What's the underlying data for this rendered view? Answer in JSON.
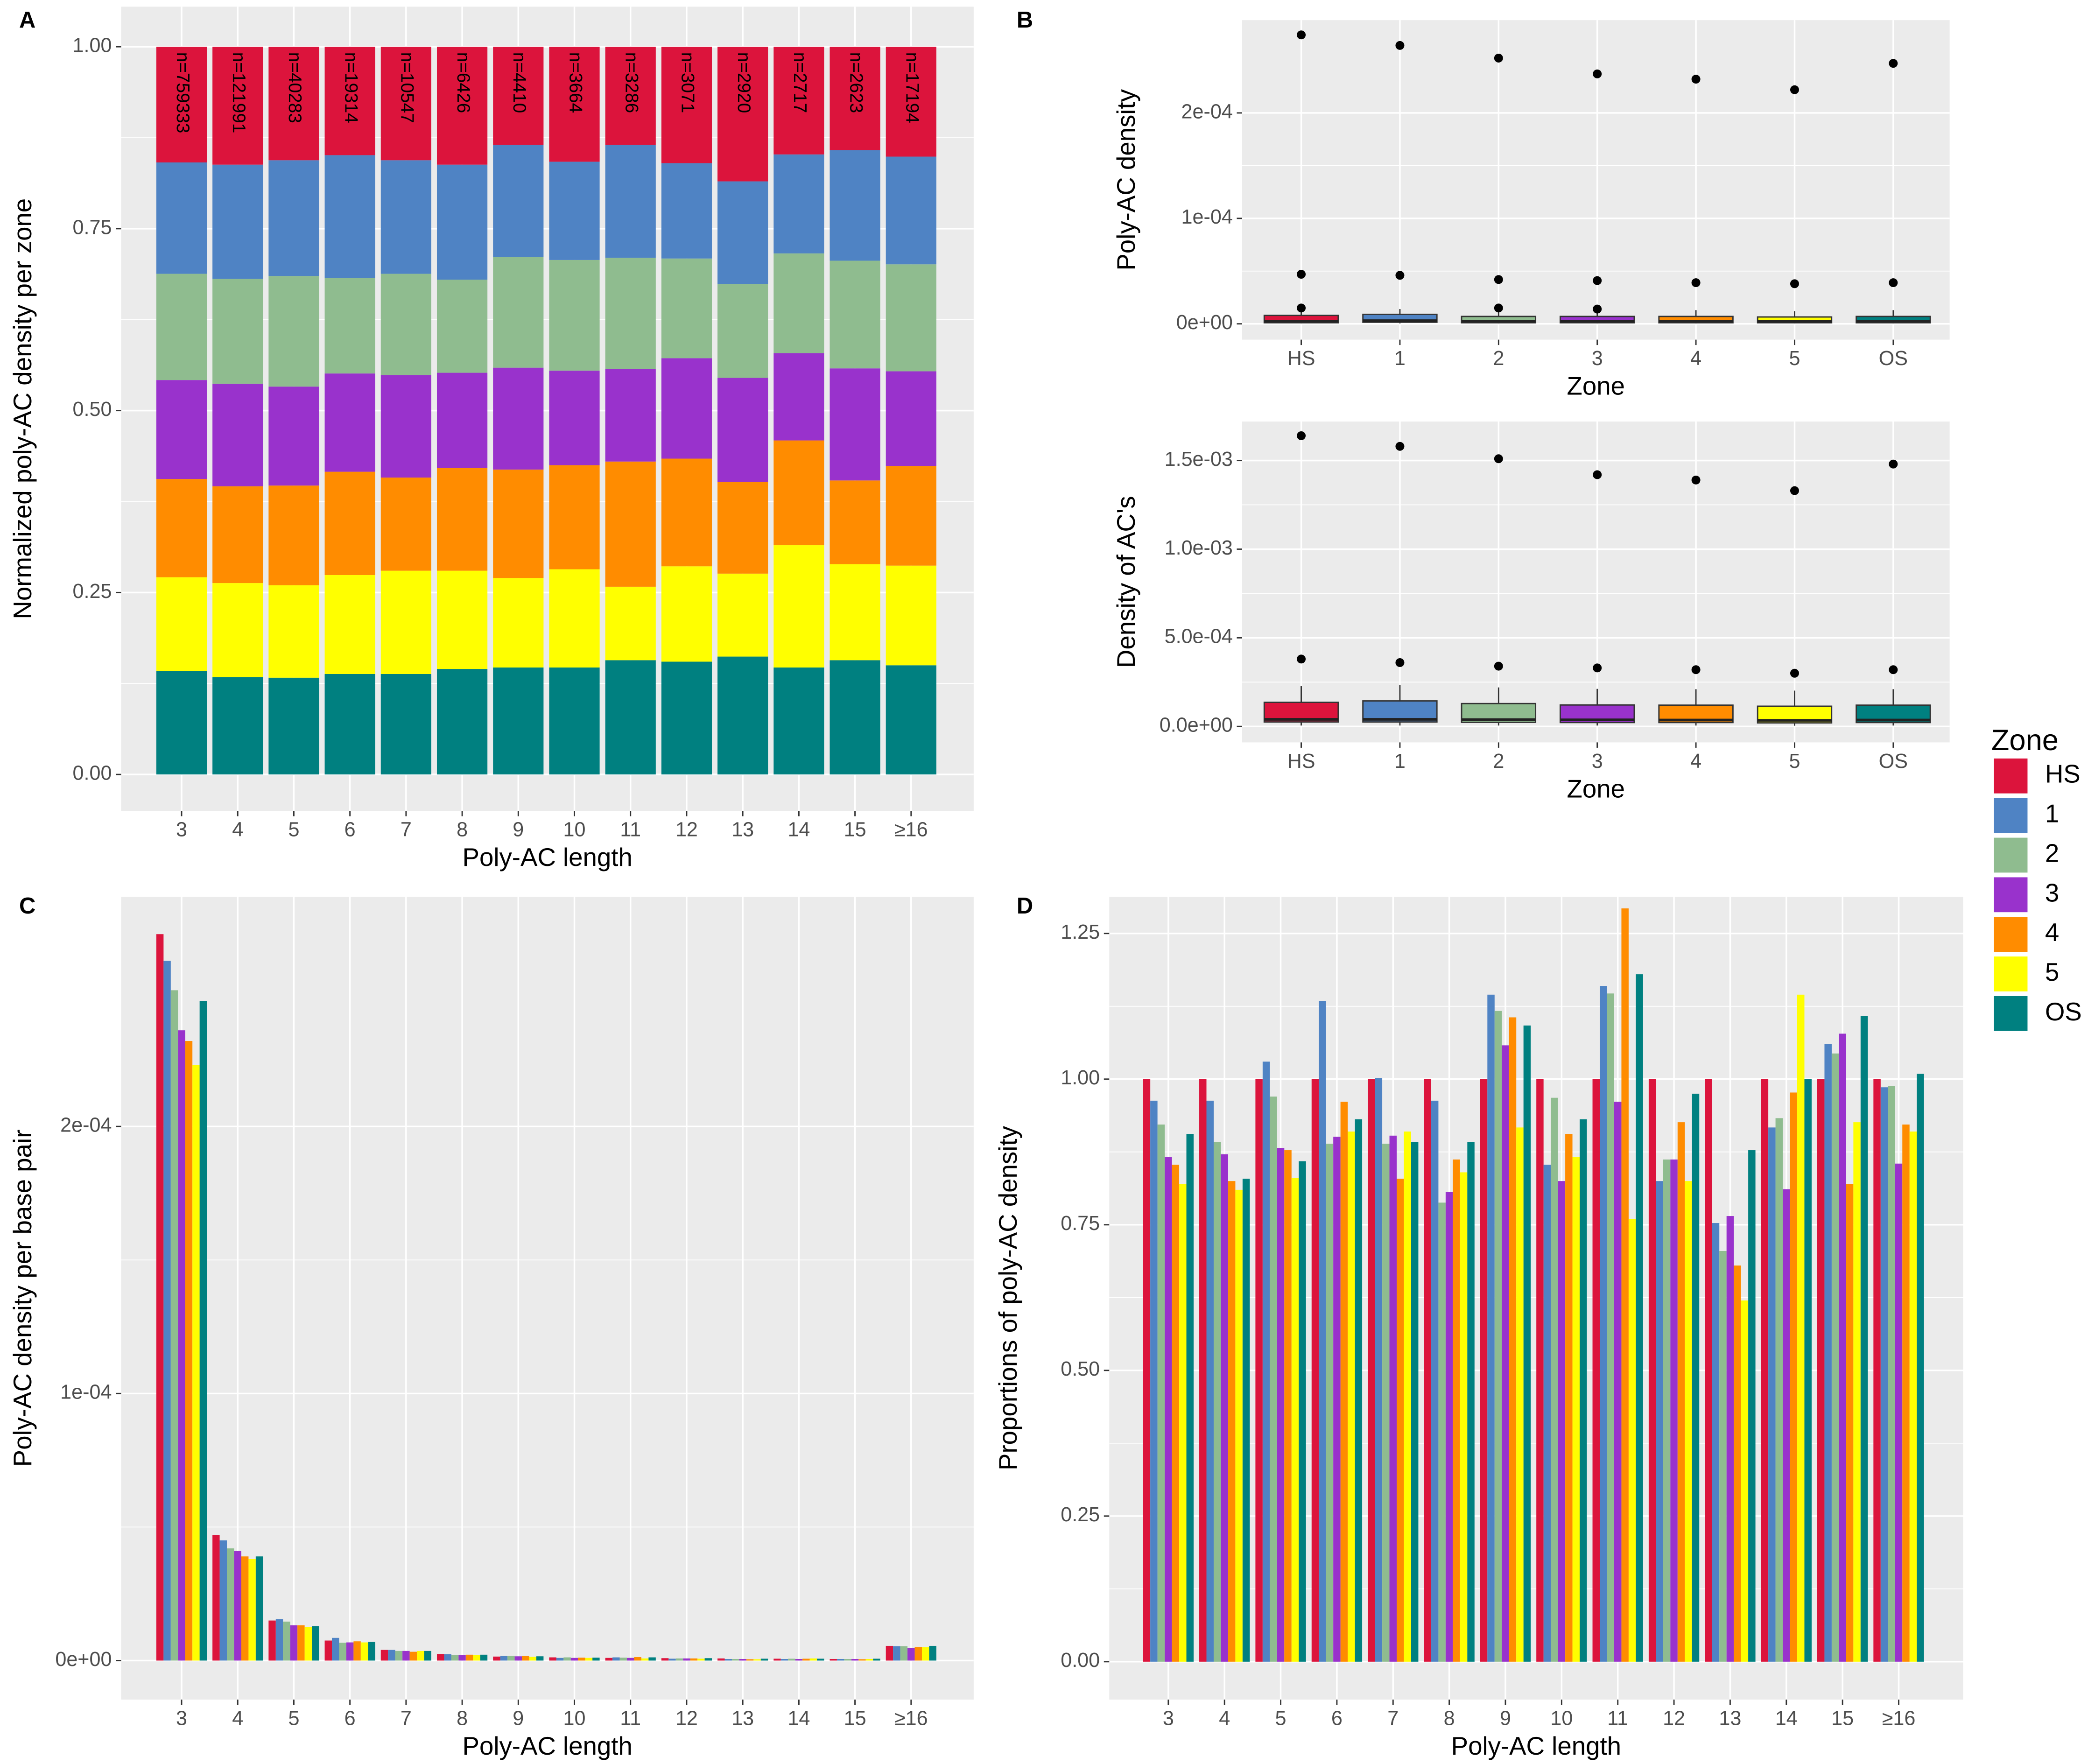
{
  "chart_data": [
    {
      "type": "bar",
      "stacked": true,
      "panel_label": "A",
      "xlabel": "Poly-AC length",
      "ylabel": "Normalized poly-AC density per zone",
      "categories": [
        "3",
        "4",
        "5",
        "6",
        "7",
        "8",
        "9",
        "10",
        "11",
        "12",
        "13",
        "14",
        "15",
        "≥16"
      ],
      "bar_labels": [
        "n=759333",
        "n=121991",
        "n=40283",
        "n=19314",
        "n=10547",
        "n=6426",
        "n=4410",
        "n=3664",
        "n=3286",
        "n=3071",
        "n=2920",
        "n=2717",
        "n=2623",
        "n=17194"
      ],
      "ylim": [
        -0.05,
        1.055
      ],
      "yticks": [
        {
          "value": 0,
          "label": "0.00"
        },
        0.25,
        {
          "value": 0.5,
          "label": "0.50"
        },
        0.75,
        {
          "value": 1,
          "label": "1.00"
        }
      ],
      "grid": true,
      "series": [
        {
          "name": "HS",
          "color": "#dc143c",
          "values": [
            0.159,
            0.162,
            0.156,
            0.149,
            0.156,
            0.162,
            0.135,
            0.158,
            0.135,
            0.16,
            0.185,
            0.148,
            0.142,
            0.151
          ]
        },
        {
          "name": "1",
          "color": "#4f83c4",
          "values": [
            0.153,
            0.157,
            0.159,
            0.169,
            0.156,
            0.158,
            0.154,
            0.135,
            0.155,
            0.131,
            0.141,
            0.136,
            0.152,
            0.148
          ]
        },
        {
          "name": "2",
          "color": "#8fbc8f",
          "values": [
            0.146,
            0.144,
            0.152,
            0.131,
            0.139,
            0.128,
            0.152,
            0.152,
            0.153,
            0.137,
            0.129,
            0.137,
            0.148,
            0.147
          ]
        },
        {
          "name": "3",
          "color": "#9932cc",
          "values": [
            0.136,
            0.141,
            0.136,
            0.135,
            0.141,
            0.131,
            0.14,
            0.13,
            0.127,
            0.138,
            0.143,
            0.12,
            0.154,
            0.13
          ]
        },
        {
          "name": "4",
          "color": "#ff8c00",
          "values": [
            0.135,
            0.133,
            0.137,
            0.142,
            0.128,
            0.141,
            0.149,
            0.143,
            0.172,
            0.148,
            0.126,
            0.144,
            0.115,
            0.137
          ]
        },
        {
          "name": "5",
          "color": "#ffff00",
          "values": [
            0.129,
            0.129,
            0.127,
            0.136,
            0.142,
            0.135,
            0.123,
            0.135,
            0.101,
            0.131,
            0.114,
            0.168,
            0.132,
            0.137
          ]
        },
        {
          "name": "OS",
          "color": "#008080",
          "values": [
            0.142,
            0.134,
            0.133,
            0.138,
            0.138,
            0.145,
            0.147,
            0.147,
            0.157,
            0.155,
            0.162,
            0.147,
            0.157,
            0.15
          ]
        }
      ]
    },
    {
      "type": "boxplot",
      "panel_label": "B",
      "xlabel": "Zone",
      "ylabel": "Poly-AC density",
      "categories": [
        "HS",
        "1",
        "2",
        "3",
        "4",
        "5",
        "OS"
      ],
      "colors": [
        "#dc143c",
        "#4f83c4",
        "#8fbc8f",
        "#9932cc",
        "#ff8c00",
        "#ffff00",
        "#008080"
      ],
      "ylim": [
        -1.5e-05,
        0.000288
      ],
      "yticks": [
        {
          "value": 0,
          "label": "0e+00"
        },
        {
          "value": 0.0001,
          "label": "1e-04"
        },
        {
          "value": 0.0002,
          "label": "2e-04"
        }
      ],
      "grid": true,
      "boxes": [
        {
          "min": 4e-07,
          "q1": 1e-06,
          "median": 2.5e-06,
          "q3": 8e-06,
          "max": 1.4e-05,
          "outliers": [
            0.000274,
            4.7e-05,
            1.5e-05
          ]
        },
        {
          "min": 4e-07,
          "q1": 1.5e-06,
          "median": 3e-06,
          "q3": 9e-06,
          "max": 1.4e-05,
          "outliers": [
            0.000264,
            4.6e-05
          ]
        },
        {
          "min": 4e-07,
          "q1": 1e-06,
          "median": 2.5e-06,
          "q3": 7e-06,
          "max": 1.3e-05,
          "outliers": [
            0.000252,
            4.2e-05,
            1.5e-05
          ]
        },
        {
          "min": 4e-07,
          "q1": 1e-06,
          "median": 2.5e-06,
          "q3": 7e-06,
          "max": 1.2e-05,
          "outliers": [
            0.000237,
            4.1e-05,
            1.4e-05
          ]
        },
        {
          "min": 4e-07,
          "q1": 1e-06,
          "median": 2.5e-06,
          "q3": 7e-06,
          "max": 1.3e-05,
          "outliers": [
            0.000232,
            3.9e-05
          ]
        },
        {
          "min": 4e-07,
          "q1": 1e-06,
          "median": 2.4e-06,
          "q3": 6.5e-06,
          "max": 1.2e-05,
          "outliers": [
            0.000222,
            3.8e-05
          ]
        },
        {
          "min": 4e-07,
          "q1": 1e-06,
          "median": 2.5e-06,
          "q3": 7e-06,
          "max": 1.3e-05,
          "outliers": [
            0.000247,
            3.9e-05
          ]
        }
      ]
    },
    {
      "type": "boxplot",
      "xlabel": "Zone",
      "ylabel": "Density of AC's",
      "categories": [
        "HS",
        "1",
        "2",
        "3",
        "4",
        "5",
        "OS"
      ],
      "colors": [
        "#dc143c",
        "#4f83c4",
        "#8fbc8f",
        "#9932cc",
        "#ff8c00",
        "#ffff00",
        "#008080"
      ],
      "ylim": [
        -9e-05,
        0.00172
      ],
      "yticks": [
        {
          "value": 0,
          "label": "0.0e+00"
        },
        {
          "value": 0.0005,
          "label": "5.0e-04"
        },
        {
          "value": 0.001,
          "label": "1.0e-03"
        },
        {
          "value": 0.0015,
          "label": "1.5e-03"
        }
      ],
      "grid": true,
      "boxes": [
        {
          "min": 5e-06,
          "q1": 2.5e-05,
          "median": 4e-05,
          "q3": 0.000136,
          "max": 0.000227,
          "outliers": [
            0.00164,
            0.00038
          ]
        },
        {
          "min": 5e-06,
          "q1": 2.5e-05,
          "median": 4e-05,
          "q3": 0.000144,
          "max": 0.000235,
          "outliers": [
            0.00158,
            0.00036
          ]
        },
        {
          "min": 5e-06,
          "q1": 2.3e-05,
          "median": 3.8e-05,
          "q3": 0.000129,
          "max": 0.00022,
          "outliers": [
            0.00151,
            0.00034
          ]
        },
        {
          "min": 5e-06,
          "q1": 2.2e-05,
          "median": 3.7e-05,
          "q3": 0.000121,
          "max": 0.000212,
          "outliers": [
            0.00142,
            0.00033
          ]
        },
        {
          "min": 5e-06,
          "q1": 2.2e-05,
          "median": 3.6e-05,
          "q3": 0.00012,
          "max": 0.00021,
          "outliers": [
            0.00139,
            0.00032
          ]
        },
        {
          "min": 4e-06,
          "q1": 2e-05,
          "median": 3.4e-05,
          "q3": 0.000114,
          "max": 0.000202,
          "outliers": [
            0.00133,
            0.0003
          ]
        },
        {
          "min": 5e-06,
          "q1": 2.2e-05,
          "median": 3.6e-05,
          "q3": 0.00012,
          "max": 0.00021,
          "outliers": [
            0.00148,
            0.00032
          ]
        }
      ]
    },
    {
      "type": "bar",
      "panel_label": "C",
      "xlabel": "Poly-AC length",
      "ylabel": "Poly-AC density per base pair",
      "categories": [
        "3",
        "4",
        "5",
        "6",
        "7",
        "8",
        "9",
        "10",
        "11",
        "12",
        "13",
        "14",
        "15",
        "≥16"
      ],
      "ylim": [
        -1.46e-05,
        0.000286
      ],
      "yticks": [
        {
          "value": 0,
          "label": "0e+00"
        },
        {
          "value": 0.0001,
          "label": "1e-04"
        },
        {
          "value": 0.0002,
          "label": "2e-04"
        }
      ],
      "grid": true,
      "series": [
        {
          "name": "HS",
          "color": "#dc143c",
          "values": [
            0.000272,
            4.7e-05,
            1.5e-05,
            7.5e-06,
            4e-06,
            2.5e-06,
            1.5e-06,
            1.2e-06,
            1e-06,
            9e-07,
            8e-07,
            7e-07,
            6e-07,
            5.5e-06
          ]
        },
        {
          "name": "1",
          "color": "#4f83c4",
          "values": [
            0.000262,
            4.5e-05,
            1.55e-05,
            8.5e-06,
            4e-06,
            2.4e-06,
            1.7e-06,
            1e-06,
            1.2e-06,
            7e-07,
            6e-07,
            6e-07,
            6e-07,
            5.4e-06
          ]
        },
        {
          "name": "2",
          "color": "#8fbc8f",
          "values": [
            0.000251,
            4.2e-05,
            1.46e-05,
            6.7e-06,
            3.6e-06,
            2e-06,
            1.7e-06,
            1.2e-06,
            1.1e-06,
            8e-07,
            6e-07,
            7e-07,
            6e-07,
            5.4e-06
          ]
        },
        {
          "name": "3",
          "color": "#9932cc",
          "values": [
            0.000236,
            4.1e-05,
            1.32e-05,
            6.8e-06,
            3.6e-06,
            2e-06,
            1.6e-06,
            1e-06,
            1e-06,
            8e-07,
            6e-07,
            6e-07,
            6e-07,
            4.7e-06
          ]
        },
        {
          "name": "4",
          "color": "#ff8c00",
          "values": [
            0.000232,
            3.9e-05,
            1.32e-05,
            7.2e-06,
            3.3e-06,
            2.2e-06,
            1.7e-06,
            1.1e-06,
            1.3e-06,
            8e-07,
            5e-07,
            7e-07,
            5e-07,
            5.1e-06
          ]
        },
        {
          "name": "5",
          "color": "#ffff00",
          "values": [
            0.000223,
            3.8e-05,
            1.25e-05,
            6.8e-06,
            3.6e-06,
            2.1e-06,
            1.4e-06,
            1e-06,
            8e-07,
            7e-07,
            5e-07,
            8e-07,
            6e-07,
            5e-06
          ]
        },
        {
          "name": "OS",
          "color": "#008080",
          "values": [
            0.000247,
            3.9e-05,
            1.29e-05,
            7e-06,
            3.6e-06,
            2.2e-06,
            1.6e-06,
            1.1e-06,
            1.2e-06,
            9e-07,
            7e-07,
            7e-07,
            7e-07,
            5.5e-06
          ]
        }
      ]
    },
    {
      "type": "bar",
      "panel_label": "D",
      "xlabel": "Poly-AC length",
      "ylabel": "Proportions of poly-AC density",
      "categories": [
        "3",
        "4",
        "5",
        "6",
        "7",
        "8",
        "9",
        "10",
        "11",
        "12",
        "13",
        "14",
        "15",
        "≥16"
      ],
      "ylim": [
        -0.065,
        1.313
      ],
      "yticks": [
        {
          "value": 0,
          "label": "0.00"
        },
        0.25,
        {
          "value": 0.5,
          "label": "0.50"
        },
        0.75,
        {
          "value": 1,
          "label": "1.00"
        },
        1.25
      ],
      "grid": true,
      "legend_title": "Zone",
      "legend": "right",
      "series": [
        {
          "name": "HS",
          "color": "#dc143c",
          "values": [
            1,
            1,
            1,
            1,
            1,
            1,
            1,
            1,
            1,
            1,
            1,
            1,
            1,
            1
          ]
        },
        {
          "name": "1",
          "color": "#4f83c4",
          "values": [
            0.963,
            0.963,
            1.03,
            1.134,
            1.002,
            0.963,
            1.145,
            0.853,
            1.16,
            0.825,
            0.753,
            0.917,
            1.06,
            0.986
          ]
        },
        {
          "name": "2",
          "color": "#8fbc8f",
          "values": [
            0.922,
            0.892,
            0.97,
            0.889,
            0.889,
            0.788,
            1.117,
            0.968,
            1.147,
            0.862,
            0.705,
            0.933,
            1.044,
            0.988
          ]
        },
        {
          "name": "3",
          "color": "#9932cc",
          "values": [
            0.866,
            0.871,
            0.882,
            0.901,
            0.903,
            0.806,
            1.058,
            0.825,
            0.961,
            0.862,
            0.765,
            0.811,
            1.078,
            0.855
          ]
        },
        {
          "name": "4",
          "color": "#ff8c00",
          "values": [
            0.853,
            0.825,
            0.878,
            0.961,
            0.829,
            0.862,
            1.106,
            0.906,
            1.293,
            0.926,
            0.68,
            0.977,
            0.82,
            0.922
          ]
        },
        {
          "name": "5",
          "color": "#ffff00",
          "values": [
            0.82,
            0.81,
            0.83,
            0.91,
            0.91,
            0.84,
            0.917,
            0.866,
            0.76,
            0.825,
            0.62,
            1.145,
            0.926,
            0.91
          ]
        },
        {
          "name": "OS",
          "color": "#008080",
          "values": [
            0.906,
            0.829,
            0.859,
            0.931,
            0.892,
            0.892,
            1.092,
            0.931,
            1.18,
            0.975,
            0.878,
            1.0,
            1.108,
            1.009
          ]
        }
      ]
    }
  ]
}
